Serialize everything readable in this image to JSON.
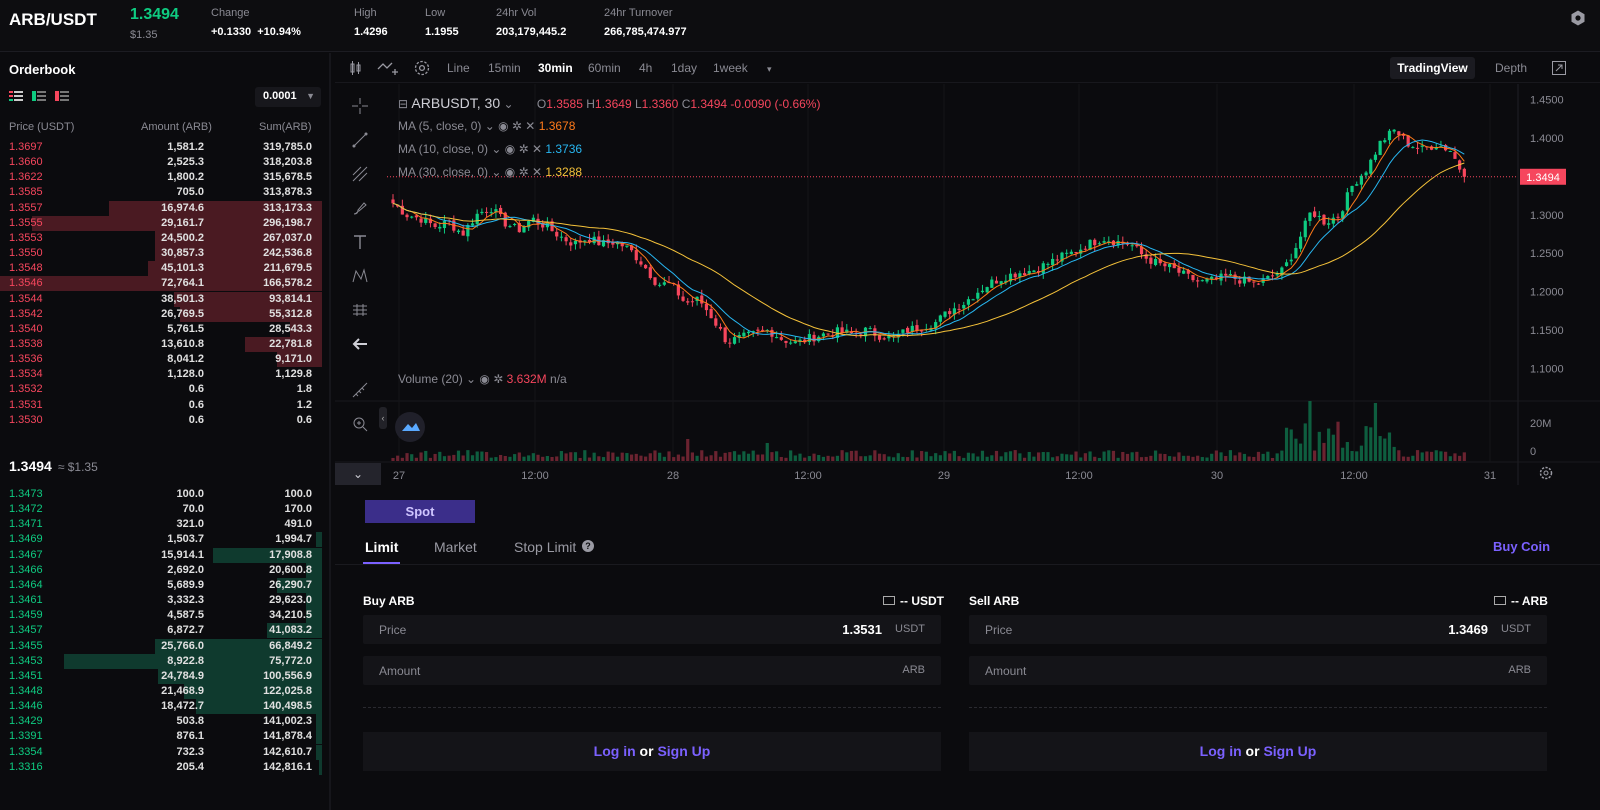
{
  "header": {
    "pair": "ARB/USDT",
    "last_price": "1.3494",
    "last_usd": "$1.35",
    "stats": [
      {
        "label": "Change",
        "value_a": "+0.1330",
        "value_b": "+10.94%"
      },
      {
        "label": "High",
        "value": "1.4296"
      },
      {
        "label": "Low",
        "value": "1.1955"
      },
      {
        "label": "24hr Vol",
        "value": "203,179,445.2"
      },
      {
        "label": "24hr Turnover",
        "value": "266,785,474.977"
      }
    ],
    "settings_icon": "gear-icon"
  },
  "orderbook": {
    "title": "Orderbook",
    "precision": "0.0001",
    "headers": {
      "price": "Price (USDT)",
      "amount": "Amount (ARB)",
      "sum": "Sum(ARB)"
    },
    "asks": [
      {
        "p": "1.3697",
        "a": "1,581.2",
        "s": "319,785.0",
        "d": 0
      },
      {
        "p": "1.3660",
        "a": "2,525.3",
        "s": "318,203.8",
        "d": 0
      },
      {
        "p": "1.3622",
        "a": "1,800.2",
        "s": "315,678.5",
        "d": 0
      },
      {
        "p": "1.3585",
        "a": "705.0",
        "s": "313,878.3",
        "d": 0
      },
      {
        "p": "1.3557",
        "a": "16,974.6",
        "s": "313,173.3",
        "d": 0.66
      },
      {
        "p": "1.3555",
        "a": "29,161.7",
        "s": "296,198.7",
        "d": 0.9
      },
      {
        "p": "1.3553",
        "a": "24,500.2",
        "s": "267,037.0",
        "d": 0.52
      },
      {
        "p": "1.3550",
        "a": "30,857.3",
        "s": "242,536.8",
        "d": 0.52
      },
      {
        "p": "1.3548",
        "a": "45,101.3",
        "s": "211,679.5",
        "d": 0.54
      },
      {
        "p": "1.3546",
        "a": "72,764.1",
        "s": "166,578.2",
        "d": 1.0
      },
      {
        "p": "1.3544",
        "a": "38,501.3",
        "s": "93,814.1",
        "d": 0.46
      },
      {
        "p": "1.3542",
        "a": "26,769.5",
        "s": "55,312.8",
        "d": 0.44
      },
      {
        "p": "1.3540",
        "a": "5,761.5",
        "s": "28,543.3",
        "d": 0.1
      },
      {
        "p": "1.3538",
        "a": "13,610.8",
        "s": "22,781.8",
        "d": 0.24
      },
      {
        "p": "1.3536",
        "a": "8,041.2",
        "s": "9,171.0",
        "d": 0.14
      },
      {
        "p": "1.3534",
        "a": "1,128.0",
        "s": "1,129.8",
        "d": 0
      },
      {
        "p": "1.3532",
        "a": "0.6",
        "s": "1.8",
        "d": 0
      },
      {
        "p": "1.3531",
        "a": "0.6",
        "s": "1.2",
        "d": 0
      },
      {
        "p": "1.3530",
        "a": "0.6",
        "s": "0.6",
        "d": 0
      }
    ],
    "mid_price": "1.3494",
    "mid_usd": "≈ $1.35",
    "bids": [
      {
        "p": "1.3473",
        "a": "100.0",
        "s": "100.0",
        "d": 0
      },
      {
        "p": "1.3472",
        "a": "70.0",
        "s": "170.0",
        "d": 0
      },
      {
        "p": "1.3471",
        "a": "321.0",
        "s": "491.0",
        "d": 0
      },
      {
        "p": "1.3469",
        "a": "1,503.7",
        "s": "1,994.7",
        "d": 0.02
      },
      {
        "p": "1.3467",
        "a": "15,914.1",
        "s": "17,908.8",
        "d": 0.34
      },
      {
        "p": "1.3466",
        "a": "2,692.0",
        "s": "20,600.8",
        "d": 0.05
      },
      {
        "p": "1.3464",
        "a": "5,689.9",
        "s": "26,290.7",
        "d": 0.14
      },
      {
        "p": "1.3461",
        "a": "3,332.3",
        "s": "29,623.0",
        "d": 0.05
      },
      {
        "p": "1.3459",
        "a": "4,587.5",
        "s": "34,210.5",
        "d": 0.05
      },
      {
        "p": "1.3457",
        "a": "6,872.7",
        "s": "41,083.2",
        "d": 0.17
      },
      {
        "p": "1.3455",
        "a": "25,766.0",
        "s": "66,849.2",
        "d": 0.52
      },
      {
        "p": "1.3453",
        "a": "8,922.8",
        "s": "75,772.0",
        "d": 0.8
      },
      {
        "p": "1.3451",
        "a": "24,784.9",
        "s": "100,556.9",
        "d": 0.51
      },
      {
        "p": "1.3448",
        "a": "21,468.9",
        "s": "122,025.8",
        "d": 0.43
      },
      {
        "p": "1.3446",
        "a": "18,472.7",
        "s": "140,498.5",
        "d": 0.39
      },
      {
        "p": "1.3429",
        "a": "503.8",
        "s": "141,002.3",
        "d": 0.02
      },
      {
        "p": "1.3391",
        "a": "876.1",
        "s": "141,878.4",
        "d": 0.02
      },
      {
        "p": "1.3354",
        "a": "732.3",
        "s": "142,610.7",
        "d": 0.02
      },
      {
        "p": "1.3316",
        "a": "205.4",
        "s": "142,816.1",
        "d": 0.01
      }
    ]
  },
  "chart_toolbar": {
    "timeframes": [
      "Line",
      "15min",
      "30min",
      "60min",
      "4h",
      "1day",
      "1week"
    ],
    "active": "30min",
    "view_tv": "TradingView",
    "view_depth": "Depth",
    "more": "▾"
  },
  "chart_data": {
    "type": "candlestick",
    "symbol": "ARBUSDT, 30",
    "ohlc": {
      "o": "1.3585",
      "h": "1.3649",
      "l": "1.3360",
      "c": "1.3494",
      "chg": "-0.0090 (-0.66%)"
    },
    "ma": [
      {
        "label": "MA (5, close, 0)",
        "value": "1.3678",
        "color": "#ff7a1a"
      },
      {
        "label": "MA (10, close, 0)",
        "value": "1.3736",
        "color": "#27b6f0"
      },
      {
        "label": "MA (30, close, 0)",
        "value": "1.3288",
        "color": "#f5c23a"
      }
    ],
    "volume_label": "Volume (20)",
    "volume_value": "3.632M",
    "volume_na": "n/a",
    "y_ticks": [
      "1.4500",
      "1.4000",
      "1.3500",
      "1.3000",
      "1.2500",
      "1.2000",
      "1.1500",
      "1.1000"
    ],
    "y_tick_values": [
      1.45,
      1.4,
      1.35,
      1.3,
      1.25,
      1.2,
      1.15,
      1.1
    ],
    "ylim": [
      1.08,
      1.47
    ],
    "last_label": "1.3494",
    "last_value": 1.3494,
    "vol_ticks": [
      "20M",
      "0"
    ],
    "x_ticks": [
      "27",
      "12:00",
      "28",
      "12:00",
      "29",
      "12:00",
      "30",
      "12:00",
      "31"
    ],
    "close_anchors": [
      1.315,
      1.3,
      1.295,
      1.285,
      1.29,
      1.275,
      1.3,
      1.31,
      1.29,
      1.28,
      1.295,
      1.285,
      1.272,
      1.262,
      1.27,
      1.262,
      1.265,
      1.255,
      1.235,
      1.21,
      1.21,
      1.185,
      1.19,
      1.165,
      1.135,
      1.14,
      1.145,
      1.15,
      1.138,
      1.133,
      1.14,
      1.145,
      1.148,
      1.145,
      1.15,
      1.143,
      1.14,
      1.15,
      1.155,
      1.16,
      1.175,
      1.185,
      1.2,
      1.212,
      1.22,
      1.225,
      1.228,
      1.236,
      1.245,
      1.252,
      1.262,
      1.27,
      1.265,
      1.262,
      1.245,
      1.236,
      1.23,
      1.22,
      1.212,
      1.215,
      1.22,
      1.215,
      1.21,
      1.218,
      1.228,
      1.262,
      1.305,
      1.29,
      1.3,
      1.34,
      1.36,
      1.395,
      1.41,
      1.392,
      1.385,
      1.392,
      1.384,
      1.349
    ]
  },
  "trade": {
    "spot_tab": "Spot",
    "order_tabs": [
      "Limit",
      "Market",
      "Stop Limit"
    ],
    "buy_coin": "Buy Coin",
    "buy": {
      "title": "Buy ARB",
      "balance": "-- USDT",
      "price_label": "Price",
      "price_value": "1.3531",
      "price_unit": "USDT",
      "amount_label": "Amount",
      "amount_unit": "ARB"
    },
    "sell": {
      "title": "Sell ARB",
      "balance": "-- ARB",
      "price_label": "Price",
      "price_value": "1.3469",
      "price_unit": "USDT",
      "amount_label": "Amount",
      "amount_unit": "ARB"
    },
    "login": {
      "login": "Log in",
      "or": "or",
      "signup": "Sign Up"
    }
  }
}
